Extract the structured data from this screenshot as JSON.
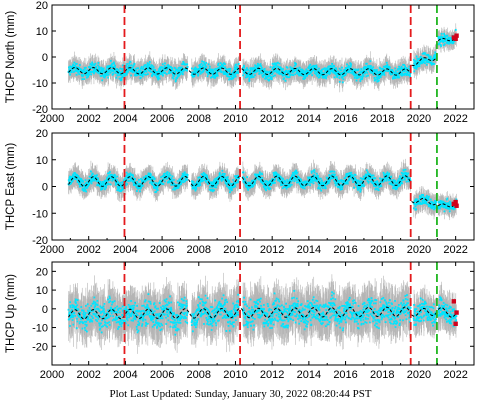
{
  "footer": {
    "label": "Plot Last Updated:",
    "value": "Sunday, January 30, 2022 08:20:44 PST"
  },
  "colors": {
    "error_bars": "#a9a9a9",
    "data_points": "#00e5ff",
    "model_line": "#000000",
    "event_red": "#e41a1c",
    "event_green": "#1fb51f",
    "recent_points": "#d0021b"
  },
  "chart_data": [
    {
      "type": "scatter",
      "ylabel": "THCP North (mm)",
      "xlim": [
        2000,
        2023
      ],
      "ylim": [
        -20,
        20
      ],
      "xticks": [
        2000,
        2002,
        2004,
        2006,
        2008,
        2010,
        2012,
        2014,
        2016,
        2018,
        2020,
        2022
      ],
      "yticks": [
        -20,
        -10,
        0,
        10,
        20
      ],
      "data_gaps": [
        [
          2007.4,
          2007.6
        ],
        [
          2010.2,
          2010.4
        ],
        [
          2019.6,
          2019.7
        ]
      ],
      "segments": [
        {
          "x_start": 2000.9,
          "x_end": 2019.55,
          "level_start": -5.2,
          "level_end": -5.8,
          "seasonal_amplitude": 1.2,
          "scatter": 2.0,
          "error": 3.5
        },
        {
          "x_start": 2019.6,
          "x_end": 2020.95,
          "level_start": -2.5,
          "level_end": 0.0,
          "seasonal_amplitude": 1.0,
          "scatter": 2.0,
          "error": 3.5
        },
        {
          "x_start": 2021.05,
          "x_end": 2022.05,
          "level_start": 6.0,
          "level_end": 7.5,
          "seasonal_amplitude": 0.8,
          "scatter": 1.8,
          "error": 2.8
        }
      ],
      "event_lines": [
        {
          "x": 2003.95,
          "color": "red"
        },
        {
          "x": 2010.25,
          "color": "red"
        },
        {
          "x": 2019.55,
          "color": "red"
        },
        {
          "x": 2020.98,
          "color": "green"
        }
      ],
      "recent_points": [
        {
          "x": 2021.9,
          "y": 7.5
        },
        {
          "x": 2022.0,
          "y": 7.0
        },
        {
          "x": 2022.05,
          "y": 8.2
        }
      ]
    },
    {
      "type": "scatter",
      "ylabel": "THCP East (mm)",
      "xlim": [
        2000,
        2023
      ],
      "ylim": [
        -20,
        20
      ],
      "xticks": [
        2000,
        2002,
        2004,
        2006,
        2008,
        2010,
        2012,
        2014,
        2016,
        2018,
        2020,
        2022
      ],
      "yticks": [
        -20,
        -10,
        0,
        10,
        20
      ],
      "data_gaps": [
        [
          2007.4,
          2007.6
        ],
        [
          2010.2,
          2010.4
        ],
        [
          2019.6,
          2019.7
        ]
      ],
      "segments": [
        {
          "x_start": 2000.9,
          "x_end": 2019.55,
          "level_start": 1.8,
          "level_end": 2.2,
          "seasonal_amplitude": 1.8,
          "scatter": 1.8,
          "error": 3.5
        },
        {
          "x_start": 2019.6,
          "x_end": 2020.95,
          "level_start": -5.0,
          "level_end": -6.0,
          "seasonal_amplitude": 1.0,
          "scatter": 1.8,
          "error": 3.2
        },
        {
          "x_start": 2021.05,
          "x_end": 2022.05,
          "level_start": -7.5,
          "level_end": -6.5,
          "seasonal_amplitude": 0.8,
          "scatter": 1.8,
          "error": 3.0
        }
      ],
      "event_lines": [
        {
          "x": 2003.95,
          "color": "red"
        },
        {
          "x": 2010.25,
          "color": "red"
        },
        {
          "x": 2019.55,
          "color": "red"
        },
        {
          "x": 2020.98,
          "color": "green"
        }
      ],
      "recent_points": [
        {
          "x": 2021.9,
          "y": -6.5
        },
        {
          "x": 2022.0,
          "y": -5.8
        },
        {
          "x": 2022.05,
          "y": -7.2
        }
      ]
    },
    {
      "type": "scatter",
      "ylabel": "THCP Up (mm)",
      "xlim": [
        2000,
        2023
      ],
      "ylim": [
        -30,
        25
      ],
      "xticks": [
        2000,
        2002,
        2004,
        2006,
        2008,
        2010,
        2012,
        2014,
        2016,
        2018,
        2020,
        2022
      ],
      "yticks": [
        -20,
        -10,
        0,
        10,
        20
      ],
      "data_gaps": [
        [
          2007.4,
          2007.6
        ],
        [
          2010.2,
          2010.4
        ],
        [
          2019.6,
          2019.7
        ]
      ],
      "segments": [
        {
          "x_start": 2000.9,
          "x_end": 2019.55,
          "level_start": -3.0,
          "level_end": -1.5,
          "seasonal_amplitude": 2.5,
          "scatter": 6.0,
          "error": 10.0
        },
        {
          "x_start": 2019.6,
          "x_end": 2020.95,
          "level_start": -2.0,
          "level_end": -1.5,
          "seasonal_amplitude": 2.0,
          "scatter": 5.0,
          "error": 8.0
        },
        {
          "x_start": 2021.05,
          "x_end": 2022.05,
          "level_start": -1.0,
          "level_end": -3.0,
          "seasonal_amplitude": 2.0,
          "scatter": 5.0,
          "error": 8.0
        }
      ],
      "event_lines": [
        {
          "x": 2003.95,
          "color": "red"
        },
        {
          "x": 2010.25,
          "color": "red"
        },
        {
          "x": 2019.55,
          "color": "red"
        },
        {
          "x": 2020.98,
          "color": "green"
        }
      ],
      "recent_points": [
        {
          "x": 2021.9,
          "y": 4.0
        },
        {
          "x": 2022.0,
          "y": -8.0
        },
        {
          "x": 2022.05,
          "y": -2.0
        }
      ]
    }
  ]
}
